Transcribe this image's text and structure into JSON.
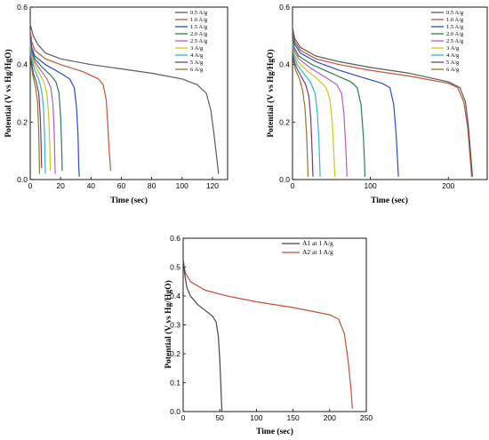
{
  "chart_data": [
    {
      "type": "line",
      "xlabel": "Time (sec)",
      "ylabel": "Potential (V vs Hg/HgO)",
      "xlim": [
        0,
        130
      ],
      "ylim": [
        0,
        0.6
      ],
      "xticks": [
        "0",
        "20",
        "40",
        "60",
        "80",
        "100",
        "120"
      ],
      "yticks": [
        "0.0",
        "0.2",
        "0.4",
        "0.6"
      ],
      "legend": "top-right",
      "series": [
        {
          "name": "0.5 A/g",
          "color": "#5a5a5a",
          "points": [
            [
              0,
              0.54
            ],
            [
              2,
              0.5
            ],
            [
              5,
              0.47
            ],
            [
              10,
              0.44
            ],
            [
              20,
              0.42
            ],
            [
              40,
              0.4
            ],
            [
              60,
              0.385
            ],
            [
              80,
              0.37
            ],
            [
              100,
              0.35
            ],
            [
              110,
              0.33
            ],
            [
              116,
              0.3
            ],
            [
              119,
              0.24
            ],
            [
              121,
              0.16
            ],
            [
              123,
              0.07
            ],
            [
              124,
              0.02
            ]
          ]
        },
        {
          "name": "1.0 A/g",
          "color": "#c0533c",
          "points": [
            [
              0,
              0.52
            ],
            [
              1,
              0.48
            ],
            [
              3,
              0.45
            ],
            [
              10,
              0.42
            ],
            [
              20,
              0.4
            ],
            [
              35,
              0.375
            ],
            [
              45,
              0.35
            ],
            [
              48,
              0.33
            ],
            [
              50,
              0.28
            ],
            [
              51,
              0.2
            ],
            [
              52,
              0.1
            ],
            [
              53,
              0.03
            ]
          ]
        },
        {
          "name": "1.5 A/g",
          "color": "#2f4bbf",
          "points": [
            [
              0,
              0.51
            ],
            [
              1,
              0.46
            ],
            [
              3,
              0.43
            ],
            [
              10,
              0.4
            ],
            [
              20,
              0.37
            ],
            [
              26,
              0.35
            ],
            [
              29,
              0.32
            ],
            [
              30.5,
              0.25
            ],
            [
              31.5,
              0.15
            ],
            [
              32,
              0.04
            ],
            [
              32.3,
              0.01
            ]
          ]
        },
        {
          "name": "2.0 A/g",
          "color": "#2e7d52",
          "points": [
            [
              0,
              0.5
            ],
            [
              1,
              0.45
            ],
            [
              3,
              0.42
            ],
            [
              8,
              0.39
            ],
            [
              14,
              0.36
            ],
            [
              17,
              0.34
            ],
            [
              19,
              0.3
            ],
            [
              20,
              0.22
            ],
            [
              20.7,
              0.12
            ],
            [
              21.1,
              0.03
            ]
          ]
        },
        {
          "name": "2.5 A/g",
          "color": "#b060c0",
          "points": [
            [
              0,
              0.49
            ],
            [
              1,
              0.44
            ],
            [
              3,
              0.41
            ],
            [
              7,
              0.38
            ],
            [
              11,
              0.35
            ],
            [
              13.5,
              0.32
            ],
            [
              15,
              0.26
            ],
            [
              15.8,
              0.16
            ],
            [
              16.3,
              0.05
            ],
            [
              16.5,
              0.02
            ]
          ]
        },
        {
          "name": "3 A/g",
          "color": "#c8c81e",
          "points": [
            [
              0,
              0.48
            ],
            [
              1,
              0.43
            ],
            [
              3,
              0.4
            ],
            [
              6,
              0.37
            ],
            [
              9,
              0.34
            ],
            [
              11,
              0.3
            ],
            [
              12.2,
              0.22
            ],
            [
              12.9,
              0.12
            ],
            [
              13.3,
              0.03
            ]
          ]
        },
        {
          "name": "4 A/g",
          "color": "#2fb4d8",
          "points": [
            [
              0,
              0.47
            ],
            [
              1,
              0.42
            ],
            [
              3,
              0.38
            ],
            [
              5.5,
              0.35
            ],
            [
              7.5,
              0.31
            ],
            [
              8.7,
              0.25
            ],
            [
              9.4,
              0.15
            ],
            [
              9.8,
              0.05
            ],
            [
              10,
              0.02
            ]
          ]
        },
        {
          "name": "5 A/g",
          "color": "#7a3a6a",
          "points": [
            [
              0,
              0.46
            ],
            [
              0.8,
              0.41
            ],
            [
              2,
              0.37
            ],
            [
              4,
              0.34
            ],
            [
              5.6,
              0.3
            ],
            [
              6.6,
              0.22
            ],
            [
              7.2,
              0.12
            ],
            [
              7.5,
              0.04
            ]
          ]
        },
        {
          "name": "6 A/g",
          "color": "#8a7a2a",
          "points": [
            [
              0,
              0.45
            ],
            [
              0.7,
              0.4
            ],
            [
              1.8,
              0.36
            ],
            [
              3.5,
              0.32
            ],
            [
              4.8,
              0.27
            ],
            [
              5.5,
              0.18
            ],
            [
              5.9,
              0.09
            ],
            [
              6.1,
              0.02
            ]
          ]
        }
      ]
    },
    {
      "type": "line",
      "xlabel": "Time (sec)",
      "ylabel": "Potential (V vs Hg/HgO)",
      "xlim": [
        0,
        250
      ],
      "ylim": [
        0,
        0.6
      ],
      "xticks": [
        "0",
        "100",
        "200"
      ],
      "yticks": [
        "0.0",
        "0.2",
        "0.4",
        "0.6"
      ],
      "legend": "top-right",
      "series": [
        {
          "name": "0.5 A/g",
          "color": "#5a5a5a",
          "points": [
            [
              0,
              0.53
            ],
            [
              3,
              0.49
            ],
            [
              10,
              0.46
            ],
            [
              30,
              0.43
            ],
            [
              60,
              0.41
            ],
            [
              100,
              0.39
            ],
            [
              150,
              0.37
            ],
            [
              200,
              0.34
            ],
            [
              215,
              0.32
            ],
            [
              222,
              0.27
            ],
            [
              226,
              0.18
            ],
            [
              229,
              0.08
            ],
            [
              231,
              0.01
            ]
          ]
        },
        {
          "name": "1.0 A/g",
          "color": "#c0533c",
          "points": [
            [
              0,
              0.52
            ],
            [
              3,
              0.48
            ],
            [
              10,
              0.45
            ],
            [
              30,
              0.42
            ],
            [
              60,
              0.4
            ],
            [
              100,
              0.38
            ],
            [
              150,
              0.36
            ],
            [
              200,
              0.335
            ],
            [
              212,
              0.32
            ],
            [
              220,
              0.27
            ],
            [
              225,
              0.18
            ],
            [
              228,
              0.08
            ],
            [
              230,
              0.01
            ]
          ]
        },
        {
          "name": "1.5 A/g",
          "color": "#2f4bbf",
          "points": [
            [
              0,
              0.51
            ],
            [
              3,
              0.47
            ],
            [
              10,
              0.44
            ],
            [
              30,
              0.41
            ],
            [
              60,
              0.38
            ],
            [
              90,
              0.355
            ],
            [
              115,
              0.335
            ],
            [
              125,
              0.32
            ],
            [
              130,
              0.26
            ],
            [
              133,
              0.16
            ],
            [
              135,
              0.06
            ],
            [
              136,
              0.01
            ]
          ]
        },
        {
          "name": "2.0 A/g",
          "color": "#2e7d52",
          "points": [
            [
              0,
              0.5
            ],
            [
              2,
              0.46
            ],
            [
              8,
              0.43
            ],
            [
              25,
              0.4
            ],
            [
              50,
              0.37
            ],
            [
              75,
              0.34
            ],
            [
              83,
              0.32
            ],
            [
              88,
              0.26
            ],
            [
              91,
              0.15
            ],
            [
              92.5,
              0.06
            ],
            [
              93,
              0.01
            ]
          ]
        },
        {
          "name": "2.5 A/g",
          "color": "#b060c0",
          "points": [
            [
              0,
              0.49
            ],
            [
              2,
              0.45
            ],
            [
              8,
              0.42
            ],
            [
              22,
              0.39
            ],
            [
              40,
              0.36
            ],
            [
              57,
              0.33
            ],
            [
              63,
              0.3
            ],
            [
              66,
              0.23
            ],
            [
              68,
              0.13
            ],
            [
              69.5,
              0.04
            ],
            [
              70,
              0.01
            ]
          ]
        },
        {
          "name": "3 A/g",
          "color": "#c8c81e",
          "points": [
            [
              0,
              0.48
            ],
            [
              2,
              0.44
            ],
            [
              7,
              0.41
            ],
            [
              18,
              0.38
            ],
            [
              32,
              0.35
            ],
            [
              43,
              0.32
            ],
            [
              48,
              0.28
            ],
            [
              51,
              0.2
            ],
            [
              53,
              0.1
            ],
            [
              54,
              0.03
            ],
            [
              54.5,
              0.01
            ]
          ]
        },
        {
          "name": "4 A/g",
          "color": "#2fb4d8",
          "points": [
            [
              0,
              0.47
            ],
            [
              2,
              0.43
            ],
            [
              6,
              0.4
            ],
            [
              14,
              0.37
            ],
            [
              23,
              0.34
            ],
            [
              29,
              0.3
            ],
            [
              32,
              0.23
            ],
            [
              34,
              0.13
            ],
            [
              35,
              0.05
            ],
            [
              35.5,
              0.01
            ]
          ]
        },
        {
          "name": "5 A/g",
          "color": "#7a3a6a",
          "points": [
            [
              0,
              0.46
            ],
            [
              1.5,
              0.42
            ],
            [
              5,
              0.39
            ],
            [
              11,
              0.36
            ],
            [
              17,
              0.33
            ],
            [
              21,
              0.29
            ],
            [
              23.5,
              0.21
            ],
            [
              25,
              0.11
            ],
            [
              26,
              0.03
            ],
            [
              26.3,
              0.01
            ]
          ]
        },
        {
          "name": "6 A/g",
          "color": "#8a7a2a",
          "points": [
            [
              0,
              0.45
            ],
            [
              1.2,
              0.41
            ],
            [
              4,
              0.38
            ],
            [
              9,
              0.35
            ],
            [
              13,
              0.31
            ],
            [
              16,
              0.25
            ],
            [
              18,
              0.16
            ],
            [
              19.3,
              0.07
            ],
            [
              20,
              0.01
            ]
          ]
        }
      ]
    },
    {
      "type": "line",
      "xlabel": "Time (sec)",
      "ylabel": "Potential (V vs Hg/HgO)",
      "xlim": [
        0,
        250
      ],
      "ylim": [
        0,
        0.6
      ],
      "xticks": [
        "0",
        "50",
        "100",
        "150",
        "200",
        "250"
      ],
      "yticks": [
        "0.0",
        "0.1",
        "0.2",
        "0.3",
        "0.4",
        "0.5",
        "0.6"
      ],
      "legend": "top-right",
      "series": [
        {
          "name": "A1 at 1 A/g",
          "color": "#454545",
          "points": [
            [
              0,
              0.53
            ],
            [
              2,
              0.48
            ],
            [
              5,
              0.43
            ],
            [
              10,
              0.4
            ],
            [
              20,
              0.37
            ],
            [
              30,
              0.35
            ],
            [
              40,
              0.33
            ],
            [
              45,
              0.31
            ],
            [
              48,
              0.26
            ],
            [
              50,
              0.18
            ],
            [
              51.5,
              0.09
            ],
            [
              52.5,
              0.02
            ],
            [
              53,
              0.0
            ]
          ]
        },
        {
          "name": "A2 at 1 A/g",
          "color": "#c0533c",
          "points": [
            [
              0,
              0.52
            ],
            [
              3,
              0.48
            ],
            [
              10,
              0.45
            ],
            [
              30,
              0.42
            ],
            [
              60,
              0.4
            ],
            [
              100,
              0.38
            ],
            [
              150,
              0.36
            ],
            [
              200,
              0.335
            ],
            [
              212,
              0.32
            ],
            [
              220,
              0.27
            ],
            [
              225,
              0.18
            ],
            [
              229,
              0.08
            ],
            [
              231,
              0.01
            ]
          ]
        }
      ]
    }
  ]
}
